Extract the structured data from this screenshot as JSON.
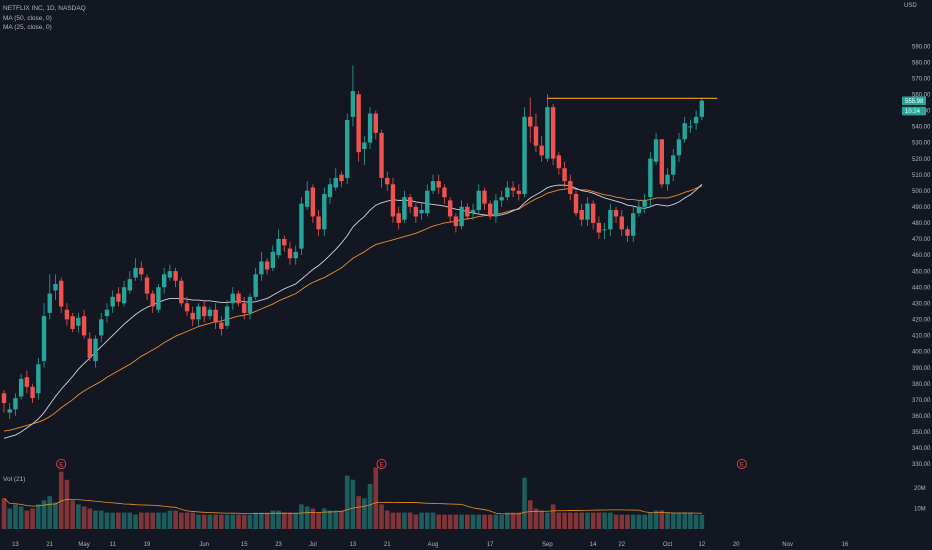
{
  "header": {
    "symbol_line": "NETFLIX INC, 1D, NASDAQ",
    "ma_lines": [
      "MA (50, close, 0)",
      "MA (25, close, 0)"
    ],
    "currency": "USD",
    "volume_label": "Vol (21)"
  },
  "colors": {
    "background": "#131722",
    "up": "#26a69a",
    "down": "#ef5350",
    "ma50": "#e8902b",
    "ma25": "#d1d4dc",
    "resistance": "#f0a020",
    "text": "#b2b5be"
  },
  "chart_data": {
    "type": "candlestick",
    "title": "",
    "xlabel": "",
    "ylabel": "",
    "ylim": [
      330,
      600
    ],
    "grid": false,
    "price_ticks": [
      330,
      340,
      350,
      360,
      370,
      380,
      390,
      400,
      410,
      420,
      430,
      440,
      450,
      460,
      470,
      480,
      490,
      500,
      510,
      520,
      530,
      540,
      550,
      560,
      570,
      580,
      590
    ],
    "price_tick_labels": [
      "330.00",
      "340.00",
      "350.00",
      "360.00",
      "370.00",
      "380.00",
      "390.00",
      "400.00",
      "410.00",
      "420.00",
      "430.00",
      "440.00",
      "450.00",
      "460.00",
      "470.00",
      "480.00",
      "490.00",
      "500.00",
      "510.00",
      "520.00",
      "530.00",
      "540.00",
      "550.00",
      "560.00",
      "570.00",
      "580.00",
      "590.00"
    ],
    "price_badges": [
      {
        "label": "555.98",
        "value": 555.98,
        "color": "#26a69a"
      },
      {
        "label": "10:24",
        "value": 549.6,
        "color": "#26a69a"
      }
    ],
    "x_axis_labels": [
      {
        "label": "13",
        "bar": 2
      },
      {
        "label": "21",
        "bar": 8
      },
      {
        "label": "May",
        "bar": 14
      },
      {
        "label": "11",
        "bar": 19
      },
      {
        "label": "19",
        "bar": 25
      },
      {
        "label": "Jun",
        "bar": 35
      },
      {
        "label": "15",
        "bar": 42
      },
      {
        "label": "23",
        "bar": 48
      },
      {
        "label": "Jul",
        "bar": 54
      },
      {
        "label": "13",
        "bar": 61
      },
      {
        "label": "21",
        "bar": 67
      },
      {
        "label": "Aug",
        "bar": 75
      },
      {
        "label": "17",
        "bar": 85
      },
      {
        "label": "Sep",
        "bar": 95
      },
      {
        "label": "14",
        "bar": 103
      },
      {
        "label": "22",
        "bar": 108
      },
      {
        "label": "Oct",
        "bar": 116
      },
      {
        "label": "12",
        "bar": 122
      },
      {
        "label": "20",
        "bar": 128
      },
      {
        "label": "Nov",
        "bar": 137
      },
      {
        "label": "16",
        "bar": 147
      }
    ],
    "earnings_markers": [
      {
        "label": "E",
        "bar": 10
      },
      {
        "label": "E",
        "bar": 66
      },
      {
        "label": "E",
        "bar": 129
      }
    ],
    "resistance_level": {
      "value": 557.5,
      "from_bar": 95,
      "to_bar": 124
    },
    "volume_ticks": [
      {
        "label": "20M",
        "value": 20
      },
      {
        "label": "10M",
        "value": 10
      }
    ],
    "volume_unit": "M",
    "close": [
      368,
      364,
      371,
      383,
      378,
      371,
      392,
      422,
      436,
      442,
      428,
      420,
      414,
      421,
      410,
      396,
      408,
      420,
      426,
      434,
      431,
      440,
      445,
      452,
      448,
      436,
      428,
      440,
      448,
      450,
      444,
      430,
      425,
      420,
      428,
      422,
      426,
      418,
      414,
      428,
      436,
      430,
      424,
      434,
      448,
      456,
      451,
      462,
      470,
      466,
      458,
      462,
      492,
      500,
      484,
      476,
      498,
      504,
      508,
      506,
      544,
      562,
      524,
      530,
      548,
      536,
      508,
      504,
      484,
      480,
      496,
      490,
      484,
      488,
      500,
      506,
      502,
      496,
      484,
      478,
      490,
      484,
      488,
      500,
      492,
      484,
      494,
      496,
      502,
      500,
      498,
      546,
      540,
      528,
      522,
      552,
      520,
      514,
      506,
      498,
      486,
      482,
      492,
      480,
      474,
      476,
      488,
      484,
      476,
      472,
      486,
      490,
      494,
      520,
      532,
      504,
      510,
      522,
      532,
      542,
      540,
      546,
      556
    ],
    "open": [
      374,
      362,
      364,
      372,
      384,
      378,
      374,
      394,
      424,
      438,
      444,
      426,
      422,
      416,
      422,
      408,
      394,
      410,
      422,
      428,
      436,
      430,
      438,
      446,
      452,
      446,
      436,
      426,
      440,
      446,
      450,
      444,
      430,
      424,
      420,
      428,
      422,
      426,
      418,
      416,
      430,
      436,
      430,
      424,
      434,
      448,
      456,
      452,
      460,
      470,
      464,
      458,
      464,
      490,
      502,
      484,
      476,
      496,
      502,
      510,
      508,
      546,
      560,
      526,
      530,
      548,
      536,
      508,
      504,
      486,
      482,
      496,
      490,
      486,
      486,
      500,
      506,
      502,
      494,
      484,
      478,
      490,
      486,
      488,
      500,
      492,
      484,
      494,
      496,
      502,
      500,
      498,
      546,
      540,
      528,
      520,
      552,
      522,
      514,
      506,
      498,
      488,
      482,
      492,
      480,
      476,
      476,
      488,
      484,
      476,
      472,
      486,
      490,
      496,
      518,
      532,
      504,
      510,
      522,
      532,
      540,
      542,
      546
    ],
    "high": [
      376,
      368,
      374,
      386,
      388,
      380,
      396,
      430,
      448,
      448,
      446,
      430,
      424,
      424,
      426,
      412,
      410,
      424,
      430,
      438,
      440,
      444,
      450,
      458,
      456,
      448,
      438,
      442,
      452,
      454,
      452,
      446,
      434,
      428,
      430,
      432,
      428,
      430,
      422,
      432,
      440,
      438,
      434,
      436,
      452,
      462,
      458,
      466,
      476,
      472,
      468,
      466,
      496,
      506,
      504,
      488,
      502,
      508,
      514,
      512,
      548,
      578,
      562,
      534,
      552,
      550,
      538,
      512,
      508,
      490,
      500,
      498,
      492,
      492,
      504,
      510,
      510,
      504,
      496,
      486,
      494,
      492,
      492,
      504,
      502,
      494,
      498,
      500,
      506,
      506,
      504,
      552,
      558,
      548,
      534,
      560,
      554,
      524,
      518,
      510,
      500,
      492,
      496,
      494,
      484,
      480,
      492,
      490,
      488,
      478,
      490,
      494,
      498,
      524,
      536,
      532,
      514,
      526,
      536,
      546,
      544,
      550,
      558
    ],
    "low": [
      362,
      358,
      360,
      370,
      374,
      368,
      370,
      390,
      420,
      432,
      424,
      416,
      412,
      412,
      408,
      394,
      390,
      406,
      418,
      424,
      428,
      428,
      436,
      444,
      444,
      432,
      424,
      424,
      436,
      444,
      440,
      428,
      422,
      416,
      416,
      418,
      420,
      414,
      410,
      414,
      426,
      428,
      420,
      420,
      432,
      444,
      448,
      450,
      458,
      462,
      454,
      454,
      460,
      488,
      480,
      472,
      472,
      492,
      500,
      502,
      504,
      540,
      518,
      516,
      526,
      532,
      502,
      500,
      480,
      476,
      480,
      486,
      480,
      482,
      484,
      498,
      498,
      492,
      480,
      474,
      476,
      482,
      482,
      486,
      488,
      482,
      480,
      490,
      494,
      496,
      494,
      496,
      530,
      524,
      518,
      518,
      516,
      510,
      502,
      494,
      484,
      478,
      478,
      476,
      470,
      470,
      472,
      480,
      472,
      468,
      468,
      484,
      486,
      490,
      516,
      502,
      500,
      506,
      518,
      530,
      536,
      538,
      544
    ],
    "volume": [
      15,
      10,
      12,
      11,
      9,
      10,
      12,
      14,
      16,
      13,
      28,
      24,
      14,
      12,
      11,
      10,
      9,
      9,
      8,
      8,
      8,
      8,
      8,
      7,
      8,
      8,
      8,
      8,
      8,
      9,
      9,
      8,
      8,
      8,
      7,
      7,
      7,
      7,
      7,
      7,
      7,
      7,
      7,
      7,
      8,
      8,
      8,
      9,
      9,
      8,
      8,
      8,
      12,
      11,
      10,
      8,
      10,
      9,
      9,
      9,
      26,
      24,
      16,
      15,
      22,
      30,
      12,
      9,
      8,
      8,
      8,
      8,
      7,
      8,
      8,
      8,
      7,
      7,
      7,
      7,
      7,
      7,
      7,
      7,
      7,
      7,
      7,
      7,
      8,
      8,
      8,
      25,
      14,
      10,
      9,
      8,
      12,
      8,
      8,
      8,
      8,
      8,
      8,
      8,
      8,
      8,
      8,
      7,
      7,
      7,
      7,
      7,
      7,
      8,
      9,
      9,
      8,
      8,
      8,
      8,
      8,
      7,
      7
    ],
    "ma50": [
      350.5,
      351.0,
      352.0,
      353.0,
      354.0,
      355.0,
      356.0,
      357.5,
      359.5,
      362.0,
      365.0,
      367.5,
      370.0,
      373.0,
      375.5,
      377.5,
      379.5,
      381.5,
      384.0,
      386.0,
      388.0,
      390.0,
      392.0,
      394.5,
      397.0,
      399.0,
      401.0,
      403.0,
      405.5,
      407.5,
      409.5,
      411.0,
      412.5,
      414.0,
      415.5,
      416.5,
      417.5,
      418.5,
      419.0,
      420.0,
      421.0,
      422.0,
      422.5,
      423.5,
      425.0,
      426.5,
      428.0,
      429.5,
      431.5,
      433.0,
      434.5,
      436.0,
      438.5,
      441.0,
      443.0,
      444.5,
      446.0,
      448.0,
      450.0,
      452.0,
      455.0,
      458.0,
      460.0,
      462.0,
      464.5,
      466.5,
      467.5,
      468.5,
      469.5,
      470.5,
      471.5,
      472.5,
      473.5,
      475.0,
      476.5,
      478.0,
      479.0,
      480.0,
      480.5,
      481.0,
      482.0,
      482.5,
      483.0,
      484.0,
      484.5,
      485.0,
      485.5,
      486.0,
      487.0,
      488.0,
      488.5,
      491.0,
      493.0,
      495.0,
      496.5,
      498.5,
      499.5,
      500.5,
      501.0,
      501.5,
      501.0,
      500.5,
      500.5,
      499.5,
      498.5,
      497.5,
      497.0,
      496.0,
      495.5,
      494.5,
      494.5,
      494.0,
      494.0,
      494.5,
      495.5,
      495.5,
      495.5,
      496.5,
      497.5,
      499.0,
      500.0,
      501.5,
      503.0
    ],
    "ma25": [
      346.0,
      347.0,
      348.0,
      350.0,
      352.5,
      355.0,
      358.0,
      362.0,
      367.0,
      372.0,
      376.5,
      380.5,
      384.5,
      389.0,
      392.5,
      396.0,
      399.5,
      403.0,
      406.5,
      410.0,
      413.5,
      417.0,
      420.0,
      423.0,
      425.5,
      427.5,
      429.0,
      430.5,
      432.0,
      433.0,
      433.0,
      433.0,
      432.5,
      432.0,
      432.0,
      431.5,
      431.5,
      431.0,
      430.5,
      430.5,
      431.0,
      431.5,
      431.0,
      430.5,
      431.0,
      432.0,
      433.0,
      435.0,
      437.0,
      439.0,
      440.5,
      442.0,
      445.0,
      448.0,
      451.0,
      453.5,
      456.5,
      460.0,
      463.5,
      467.5,
      472.0,
      477.5,
      481.0,
      484.0,
      488.0,
      491.0,
      492.5,
      493.5,
      494.5,
      494.0,
      494.0,
      494.0,
      493.0,
      492.5,
      492.0,
      491.5,
      491.0,
      490.5,
      489.5,
      488.5,
      488.0,
      487.0,
      486.0,
      485.5,
      485.0,
      484.5,
      484.5,
      485.0,
      486.0,
      487.5,
      489.0,
      492.5,
      495.5,
      497.5,
      499.5,
      502.0,
      503.0,
      503.5,
      503.5,
      503.0,
      501.5,
      500.0,
      499.5,
      498.5,
      497.0,
      495.5,
      494.5,
      493.5,
      492.5,
      491.0,
      490.5,
      489.5,
      489.0,
      490.0,
      491.5,
      491.0,
      490.5,
      491.5,
      493.0,
      495.5,
      497.5,
      500.5,
      504.0
    ]
  }
}
